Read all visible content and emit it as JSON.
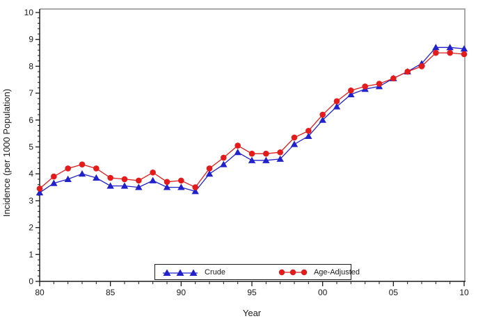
{
  "chart_data": {
    "type": "line",
    "title": "",
    "xlabel": "Year",
    "ylabel": "Incidence (per 1000 Population)",
    "x": [
      1980,
      1981,
      1982,
      1983,
      1984,
      1985,
      1986,
      1987,
      1988,
      1989,
      1990,
      1991,
      1992,
      1993,
      1994,
      1995,
      1996,
      1997,
      1998,
      1999,
      2000,
      2001,
      2002,
      2003,
      2004,
      2005,
      2006,
      2007,
      2008,
      2009,
      2010
    ],
    "xlim": [
      1980,
      2010
    ],
    "ylim": [
      0,
      10
    ],
    "y_ticks": [
      0,
      1,
      2,
      3,
      4,
      5,
      6,
      7,
      8,
      9,
      10
    ],
    "y_minor_step": 0.2,
    "x_major_ticks": [
      1980,
      1985,
      1990,
      1995,
      2000,
      2005,
      2010
    ],
    "x_tick_labels": [
      "80",
      "85",
      "90",
      "95",
      "00",
      "05",
      "10"
    ],
    "x_minor_step": 1,
    "grid": false,
    "legend_position": "bottom-center-inside",
    "series": [
      {
        "name": "Crude",
        "marker": "triangle",
        "color": "#2222cc",
        "values": [
          3.3,
          3.65,
          3.8,
          4.0,
          3.85,
          3.55,
          3.55,
          3.5,
          3.75,
          3.5,
          3.5,
          3.35,
          4.0,
          4.35,
          4.8,
          4.5,
          4.5,
          4.55,
          5.1,
          5.4,
          6.0,
          6.5,
          6.95,
          7.15,
          7.25,
          7.55,
          7.8,
          8.1,
          8.7,
          8.7,
          8.65
        ]
      },
      {
        "name": "Age-Adjusted",
        "marker": "circle",
        "color": "#e31b1b",
        "values": [
          3.45,
          3.9,
          4.2,
          4.35,
          4.2,
          3.85,
          3.8,
          3.75,
          4.05,
          3.7,
          3.75,
          3.5,
          4.2,
          4.6,
          5.05,
          4.75,
          4.75,
          4.8,
          5.35,
          5.6,
          6.2,
          6.7,
          7.1,
          7.25,
          7.35,
          7.55,
          7.8,
          8.0,
          8.5,
          8.5,
          8.45
        ]
      }
    ]
  },
  "style": {
    "axis_color": "#1a1a1a",
    "frame_color": "#a8a8a8",
    "text_color": "#1a1a1a",
    "background": "#ffffff"
  }
}
